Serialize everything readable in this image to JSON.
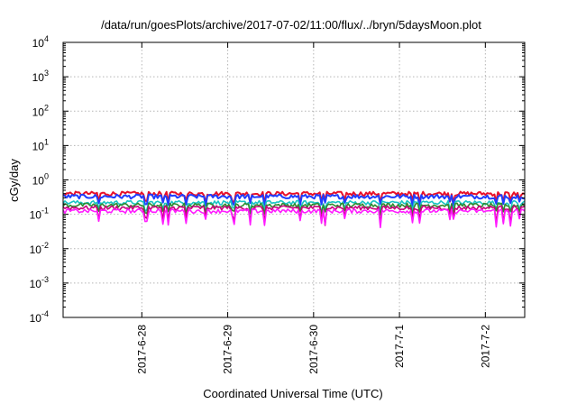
{
  "chart_data": {
    "type": "line",
    "title": "/data/run/goesPlots/archive/2017-07-02/11:00/flux/../bryn/5daysMoon.plot",
    "xlabel": "Coordinated Universal Time (UTC)",
    "ylabel": "cGy/day",
    "yscale": "log",
    "ylim": [
      0.0001,
      10000
    ],
    "xlim": [
      "2017-06-27 02:00",
      "2017-07-02 11:00"
    ],
    "x_ticks": [
      "2017-6-28",
      "2017-6-29",
      "2017-6-30",
      "2017-7-1",
      "2017-7-2"
    ],
    "y_ticks": [
      {
        "base": "10",
        "exp": "-4"
      },
      {
        "base": "10",
        "exp": "-3"
      },
      {
        "base": "10",
        "exp": "-2"
      },
      {
        "base": "10",
        "exp": "-1"
      },
      {
        "base": "10",
        "exp": "0"
      },
      {
        "base": "10",
        "exp": "1"
      },
      {
        "base": "10",
        "exp": "2"
      },
      {
        "base": "10",
        "exp": "3"
      },
      {
        "base": "10",
        "exp": "4"
      }
    ],
    "grid": true,
    "series": [
      {
        "color": "#e8102a",
        "level": 0.4
      },
      {
        "color": "#1f3cff",
        "level": 0.33
      },
      {
        "color": "#18c4c4",
        "level": 0.22
      },
      {
        "color": "#2f8a2f",
        "level": 0.185
      },
      {
        "color": "#c8007a",
        "level": 0.155
      },
      {
        "color": "#ff1aff",
        "level": 0.125
      }
    ]
  }
}
